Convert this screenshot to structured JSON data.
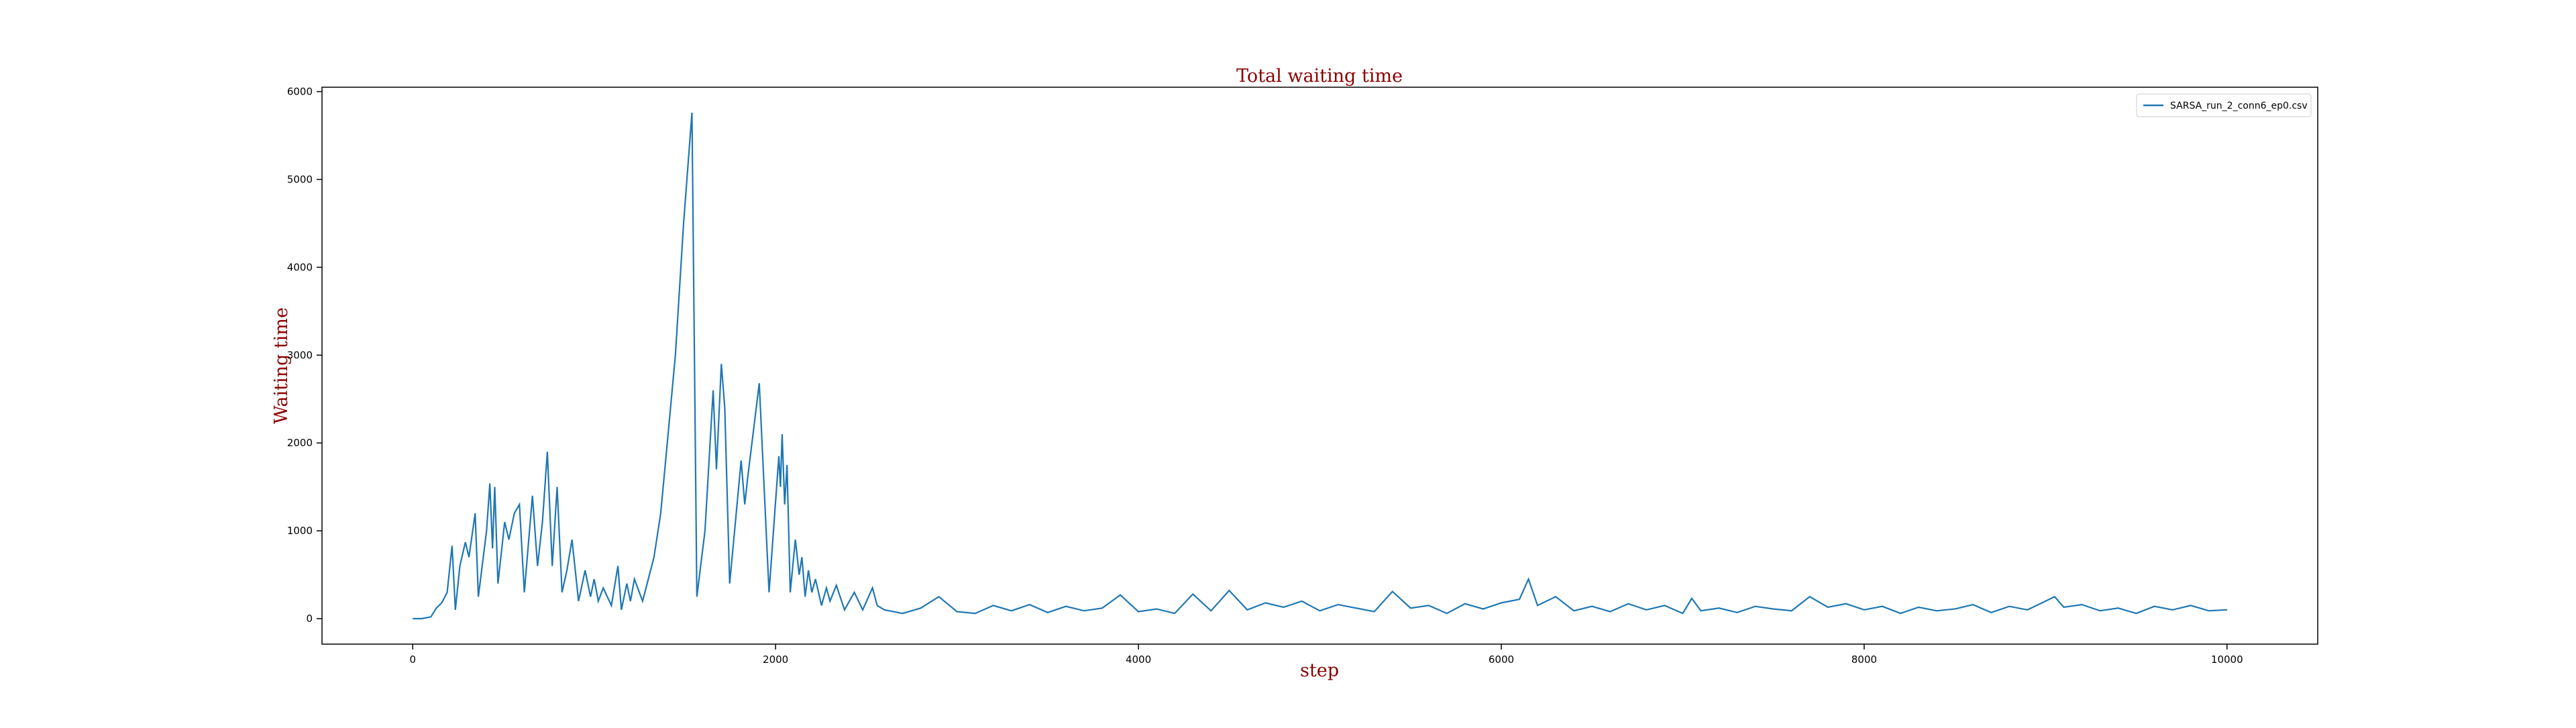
{
  "chart_data": {
    "type": "line",
    "title": "Total waiting time",
    "x_label": "step",
    "y_label": "Waiting time",
    "xlim": [
      -500,
      10500
    ],
    "ylim": [
      -290,
      6050
    ],
    "xticks": [
      0,
      2000,
      4000,
      6000,
      8000,
      10000
    ],
    "yticks": [
      0,
      1000,
      2000,
      3000,
      4000,
      5000,
      6000
    ],
    "legend": "upper right",
    "x": [
      0,
      50,
      100,
      130,
      160,
      190,
      217,
      235,
      260,
      290,
      310,
      344,
      362,
      407,
      425,
      440,
      452,
      470,
      507,
      530,
      560,
      588,
      615,
      660,
      688,
      715,
      742,
      769,
      796,
      823,
      850,
      878,
      914,
      950,
      980,
      1000,
      1023,
      1050,
      1095,
      1131,
      1150,
      1180,
      1200,
      1222,
      1267,
      1330,
      1367,
      1403,
      1448,
      1493,
      1539,
      1566,
      1611,
      1656,
      1674,
      1701,
      1720,
      1747,
      1810,
      1830,
      1846,
      1910,
      1964,
      2018,
      2027,
      2036,
      2050,
      2063,
      2081,
      2109,
      2130,
      2145,
      2163,
      2181,
      2200,
      2220,
      2253,
      2280,
      2300,
      2335,
      2380,
      2434,
      2480,
      2534,
      2560,
      2600,
      2700,
      2800,
      2900,
      3000,
      3100,
      3200,
      3300,
      3400,
      3500,
      3600,
      3700,
      3800,
      3900,
      4000,
      4100,
      4200,
      4300,
      4400,
      4500,
      4600,
      4700,
      4800,
      4900,
      5000,
      5100,
      5200,
      5300,
      5400,
      5500,
      5600,
      5700,
      5800,
      5900,
      6000,
      6100,
      6150,
      6200,
      6300,
      6400,
      6500,
      6600,
      6700,
      6800,
      6900,
      7000,
      7050,
      7100,
      7200,
      7300,
      7400,
      7500,
      7600,
      7700,
      7800,
      7900,
      8000,
      8100,
      8200,
      8300,
      8400,
      8500,
      8600,
      8700,
      8800,
      8900,
      9000,
      9050,
      9100,
      9200,
      9300,
      9400,
      9500,
      9600,
      9700,
      9800,
      9900,
      10000
    ],
    "series": [
      {
        "name": "SARSA_run_2_conn6_ep0.csv",
        "color": "#1f77b4",
        "values": [
          0,
          0,
          20,
          120,
          180,
          300,
          830,
          100,
          600,
          870,
          700,
          1200,
          250,
          1000,
          1540,
          800,
          1500,
          400,
          1100,
          900,
          1200,
          1300,
          300,
          1400,
          600,
          1100,
          1900,
          600,
          1500,
          300,
          550,
          900,
          200,
          550,
          250,
          450,
          200,
          350,
          150,
          600,
          100,
          400,
          200,
          450,
          200,
          700,
          1200,
          2000,
          3000,
          4500,
          5760,
          250,
          1000,
          2600,
          1700,
          2900,
          2400,
          400,
          1800,
          1300,
          1600,
          2680,
          300,
          1850,
          1500,
          2100,
          1300,
          1750,
          300,
          900,
          500,
          700,
          250,
          550,
          300,
          450,
          150,
          350,
          200,
          380,
          100,
          300,
          100,
          350,
          150,
          100,
          60,
          120,
          250,
          80,
          60,
          150,
          90,
          160,
          70,
          140,
          90,
          120,
          270,
          80,
          110,
          60,
          280,
          90,
          320,
          100,
          180,
          130,
          200,
          90,
          160,
          120,
          80,
          310,
          120,
          150,
          60,
          170,
          110,
          180,
          220,
          450,
          150,
          250,
          90,
          140,
          80,
          170,
          100,
          150,
          60,
          230,
          90,
          120,
          70,
          140,
          110,
          90,
          250,
          130,
          170,
          100,
          140,
          60,
          130,
          90,
          110,
          160,
          70,
          140,
          100,
          200,
          250,
          130,
          160,
          90,
          120,
          60,
          140,
          100,
          150,
          90,
          100
        ]
      }
    ]
  }
}
